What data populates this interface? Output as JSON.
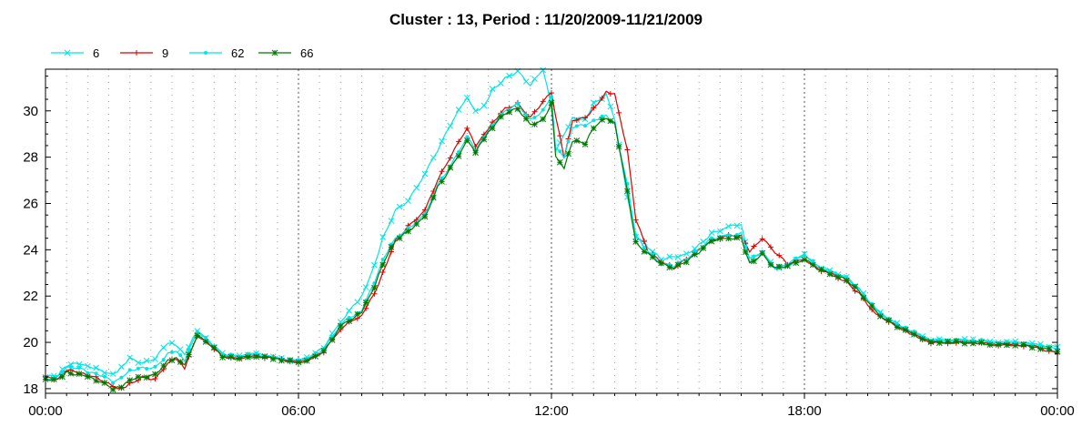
{
  "chart_data": {
    "type": "line",
    "title": "Cluster : 13, Period : 11/20/2009-11/21/2009",
    "xlabel": "",
    "ylabel": "",
    "xlim": [
      0,
      24
    ],
    "ylim": [
      17.8,
      31.8
    ],
    "x_ticks": [
      {
        "value": 0,
        "label": "00:00"
      },
      {
        "value": 6,
        "label": "06:00"
      },
      {
        "value": 12,
        "label": "12:00"
      },
      {
        "value": 18,
        "label": "18:00"
      },
      {
        "value": 24,
        "label": "00:00"
      }
    ],
    "y_ticks": [
      18,
      20,
      22,
      24,
      26,
      28,
      30
    ],
    "grid": "dotted",
    "legend_position": "top-left",
    "series": [
      {
        "name": "6",
        "color": "#00e5e5",
        "marker": "x",
        "points": [
          [
            0,
            18.5
          ],
          [
            0.3,
            18.6
          ],
          [
            0.5,
            19.0
          ],
          [
            0.8,
            19.1
          ],
          [
            1.0,
            19.0
          ],
          [
            1.3,
            18.8
          ],
          [
            1.6,
            18.6
          ],
          [
            1.8,
            18.9
          ],
          [
            2.0,
            19.3
          ],
          [
            2.3,
            19.1
          ],
          [
            2.6,
            19.3
          ],
          [
            2.9,
            20.0
          ],
          [
            3.1,
            19.9
          ],
          [
            3.3,
            19.5
          ],
          [
            3.6,
            20.5
          ],
          [
            3.9,
            20.0
          ],
          [
            4.2,
            19.5
          ],
          [
            4.5,
            19.4
          ],
          [
            5.0,
            19.5
          ],
          [
            5.5,
            19.3
          ],
          [
            6.0,
            19.2
          ],
          [
            6.3,
            19.4
          ],
          [
            6.6,
            19.8
          ],
          [
            7.0,
            20.9
          ],
          [
            7.5,
            22.0
          ],
          [
            7.8,
            23.3
          ],
          [
            8.0,
            24.5
          ],
          [
            8.3,
            25.7
          ],
          [
            8.6,
            26.1
          ],
          [
            9.0,
            27.3
          ],
          [
            9.3,
            28.3
          ],
          [
            9.6,
            29.4
          ],
          [
            10.0,
            30.6
          ],
          [
            10.2,
            30.0
          ],
          [
            10.4,
            30.2
          ],
          [
            10.6,
            30.9
          ],
          [
            10.9,
            31.4
          ],
          [
            11.2,
            31.7
          ],
          [
            11.5,
            31.1
          ],
          [
            11.8,
            31.8
          ],
          [
            12.0,
            30.2
          ],
          [
            12.1,
            28.3
          ],
          [
            12.3,
            29.0
          ],
          [
            12.5,
            29.7
          ],
          [
            12.8,
            29.6
          ],
          [
            13.0,
            30.3
          ],
          [
            13.3,
            30.7
          ],
          [
            13.5,
            29.6
          ],
          [
            13.8,
            26.3
          ],
          [
            14.0,
            24.6
          ],
          [
            14.3,
            24.1
          ],
          [
            14.6,
            23.6
          ],
          [
            14.9,
            23.7
          ],
          [
            15.2,
            23.8
          ],
          [
            15.5,
            24.2
          ],
          [
            15.8,
            24.7
          ],
          [
            16.2,
            25.0
          ],
          [
            16.5,
            25.1
          ],
          [
            16.7,
            23.5
          ],
          [
            17.0,
            23.9
          ],
          [
            17.3,
            23.2
          ],
          [
            17.6,
            23.3
          ],
          [
            18.0,
            23.8
          ],
          [
            18.3,
            23.3
          ],
          [
            18.7,
            23.0
          ],
          [
            19.0,
            22.8
          ],
          [
            19.3,
            22.3
          ],
          [
            19.7,
            21.4
          ],
          [
            20.0,
            21.0
          ],
          [
            20.5,
            20.5
          ],
          [
            21.0,
            20.1
          ],
          [
            21.5,
            20.1
          ],
          [
            22.0,
            20.1
          ],
          [
            22.5,
            20.0
          ],
          [
            23.0,
            20.0
          ],
          [
            23.5,
            19.9
          ],
          [
            24.0,
            19.8
          ]
        ]
      },
      {
        "name": "9",
        "color": "#dd0000",
        "marker": "+",
        "points": [
          [
            0,
            18.5
          ],
          [
            0.3,
            18.4
          ],
          [
            0.5,
            18.8
          ],
          [
            0.8,
            18.7
          ],
          [
            1.0,
            18.6
          ],
          [
            1.3,
            18.4
          ],
          [
            1.6,
            18.1
          ],
          [
            1.8,
            18.0
          ],
          [
            2.0,
            18.2
          ],
          [
            2.3,
            18.5
          ],
          [
            2.6,
            18.4
          ],
          [
            2.9,
            19.1
          ],
          [
            3.1,
            19.3
          ],
          [
            3.3,
            18.9
          ],
          [
            3.6,
            20.3
          ],
          [
            3.9,
            19.9
          ],
          [
            4.2,
            19.4
          ],
          [
            4.5,
            19.3
          ],
          [
            5.0,
            19.4
          ],
          [
            5.5,
            19.3
          ],
          [
            6.0,
            19.1
          ],
          [
            6.3,
            19.3
          ],
          [
            6.6,
            19.6
          ],
          [
            7.0,
            20.6
          ],
          [
            7.5,
            21.2
          ],
          [
            7.8,
            22.1
          ],
          [
            8.0,
            23.0
          ],
          [
            8.3,
            24.4
          ],
          [
            8.6,
            25.0
          ],
          [
            9.0,
            25.7
          ],
          [
            9.3,
            27.0
          ],
          [
            9.6,
            28.0
          ],
          [
            10.0,
            29.3
          ],
          [
            10.2,
            28.5
          ],
          [
            10.4,
            29.0
          ],
          [
            10.6,
            29.5
          ],
          [
            10.9,
            30.1
          ],
          [
            11.2,
            30.3
          ],
          [
            11.5,
            29.7
          ],
          [
            11.8,
            30.4
          ],
          [
            12.0,
            30.8
          ],
          [
            12.1,
            29.8
          ],
          [
            12.3,
            28.0
          ],
          [
            12.5,
            29.6
          ],
          [
            12.8,
            29.7
          ],
          [
            13.0,
            30.1
          ],
          [
            13.3,
            30.8
          ],
          [
            13.5,
            30.7
          ],
          [
            13.8,
            28.3
          ],
          [
            14.0,
            25.3
          ],
          [
            14.3,
            23.9
          ],
          [
            14.6,
            23.5
          ],
          [
            14.9,
            23.2
          ],
          [
            15.2,
            23.6
          ],
          [
            15.5,
            24.0
          ],
          [
            15.8,
            24.4
          ],
          [
            16.2,
            24.6
          ],
          [
            16.5,
            24.6
          ],
          [
            16.7,
            23.9
          ],
          [
            17.0,
            24.5
          ],
          [
            17.3,
            23.9
          ],
          [
            17.6,
            23.4
          ],
          [
            18.0,
            23.6
          ],
          [
            18.3,
            23.2
          ],
          [
            18.7,
            22.9
          ],
          [
            19.0,
            22.6
          ],
          [
            19.3,
            22.1
          ],
          [
            19.7,
            21.2
          ],
          [
            20.0,
            20.9
          ],
          [
            20.5,
            20.4
          ],
          [
            21.0,
            20.0
          ],
          [
            21.5,
            20.0
          ],
          [
            22.0,
            20.0
          ],
          [
            22.5,
            19.9
          ],
          [
            23.0,
            19.9
          ],
          [
            23.5,
            19.8
          ],
          [
            24.0,
            19.5
          ]
        ]
      },
      {
        "name": "62",
        "color": "#00e5e5",
        "marker": "dot",
        "points": [
          [
            0,
            18.4
          ],
          [
            0.3,
            18.5
          ],
          [
            0.5,
            18.9
          ],
          [
            0.8,
            18.9
          ],
          [
            1.0,
            18.7
          ],
          [
            1.3,
            18.6
          ],
          [
            1.6,
            18.3
          ],
          [
            1.8,
            18.5
          ],
          [
            2.0,
            18.8
          ],
          [
            2.3,
            18.9
          ],
          [
            2.6,
            18.9
          ],
          [
            2.9,
            19.5
          ],
          [
            3.1,
            19.6
          ],
          [
            3.3,
            19.2
          ],
          [
            3.6,
            20.5
          ],
          [
            3.9,
            20.0
          ],
          [
            4.2,
            19.5
          ],
          [
            4.5,
            19.4
          ],
          [
            5.0,
            19.5
          ],
          [
            5.5,
            19.3
          ],
          [
            6.0,
            19.2
          ],
          [
            6.3,
            19.4
          ],
          [
            6.6,
            19.7
          ],
          [
            7.0,
            20.8
          ],
          [
            7.5,
            21.4
          ],
          [
            7.8,
            22.6
          ],
          [
            8.0,
            23.6
          ],
          [
            8.3,
            24.5
          ],
          [
            8.6,
            24.9
          ],
          [
            9.0,
            25.5
          ],
          [
            9.3,
            26.8
          ],
          [
            9.6,
            27.6
          ],
          [
            10.0,
            28.9
          ],
          [
            10.2,
            28.3
          ],
          [
            10.4,
            28.9
          ],
          [
            10.6,
            29.4
          ],
          [
            10.9,
            30.0
          ],
          [
            11.2,
            30.3
          ],
          [
            11.5,
            29.6
          ],
          [
            11.8,
            30.0
          ],
          [
            12.0,
            30.6
          ],
          [
            12.1,
            28.4
          ],
          [
            12.3,
            28.0
          ],
          [
            12.5,
            29.3
          ],
          [
            12.8,
            29.4
          ],
          [
            13.0,
            29.6
          ],
          [
            13.3,
            29.8
          ],
          [
            13.5,
            29.4
          ],
          [
            13.8,
            26.8
          ],
          [
            14.0,
            24.6
          ],
          [
            14.3,
            23.9
          ],
          [
            14.6,
            23.4
          ],
          [
            14.9,
            23.3
          ],
          [
            15.2,
            23.6
          ],
          [
            15.5,
            24.0
          ],
          [
            15.8,
            24.5
          ],
          [
            16.2,
            24.6
          ],
          [
            16.5,
            24.7
          ],
          [
            16.7,
            23.6
          ],
          [
            17.0,
            23.9
          ],
          [
            17.3,
            23.2
          ],
          [
            17.6,
            23.4
          ],
          [
            18.0,
            23.8
          ],
          [
            18.3,
            23.3
          ],
          [
            18.7,
            23.0
          ],
          [
            19.0,
            22.8
          ],
          [
            19.3,
            22.3
          ],
          [
            19.7,
            21.4
          ],
          [
            20.0,
            21.0
          ],
          [
            20.5,
            20.5
          ],
          [
            21.0,
            20.1
          ],
          [
            21.5,
            20.1
          ],
          [
            22.0,
            20.1
          ],
          [
            22.5,
            20.0
          ],
          [
            23.0,
            20.0
          ],
          [
            23.5,
            19.9
          ],
          [
            24.0,
            19.7
          ]
        ]
      },
      {
        "name": "66",
        "color": "#007700",
        "marker": "*",
        "points": [
          [
            0,
            18.4
          ],
          [
            0.3,
            18.4
          ],
          [
            0.5,
            18.7
          ],
          [
            0.8,
            18.6
          ],
          [
            1.0,
            18.5
          ],
          [
            1.3,
            18.3
          ],
          [
            1.6,
            18.0
          ],
          [
            1.8,
            18.1
          ],
          [
            2.0,
            18.4
          ],
          [
            2.3,
            18.5
          ],
          [
            2.6,
            18.6
          ],
          [
            2.9,
            19.2
          ],
          [
            3.1,
            19.3
          ],
          [
            3.3,
            19.0
          ],
          [
            3.6,
            20.3
          ],
          [
            3.9,
            19.9
          ],
          [
            4.2,
            19.4
          ],
          [
            4.5,
            19.3
          ],
          [
            5.0,
            19.4
          ],
          [
            5.5,
            19.3
          ],
          [
            6.0,
            19.1
          ],
          [
            6.3,
            19.3
          ],
          [
            6.6,
            19.6
          ],
          [
            7.0,
            20.7
          ],
          [
            7.5,
            21.3
          ],
          [
            7.8,
            22.4
          ],
          [
            8.0,
            23.4
          ],
          [
            8.3,
            24.4
          ],
          [
            8.6,
            24.8
          ],
          [
            9.0,
            25.4
          ],
          [
            9.3,
            26.7
          ],
          [
            9.6,
            27.5
          ],
          [
            10.0,
            28.7
          ],
          [
            10.2,
            28.2
          ],
          [
            10.4,
            28.8
          ],
          [
            10.6,
            29.3
          ],
          [
            10.9,
            29.9
          ],
          [
            11.2,
            30.1
          ],
          [
            11.5,
            29.4
          ],
          [
            11.8,
            29.6
          ],
          [
            12.0,
            30.3
          ],
          [
            12.1,
            28.0
          ],
          [
            12.3,
            27.5
          ],
          [
            12.5,
            28.7
          ],
          [
            12.8,
            28.6
          ],
          [
            13.0,
            29.3
          ],
          [
            13.3,
            29.7
          ],
          [
            13.5,
            29.5
          ],
          [
            13.8,
            26.5
          ],
          [
            14.0,
            24.3
          ],
          [
            14.3,
            23.8
          ],
          [
            14.6,
            23.4
          ],
          [
            14.9,
            23.2
          ],
          [
            15.2,
            23.5
          ],
          [
            15.5,
            23.9
          ],
          [
            15.8,
            24.4
          ],
          [
            16.2,
            24.5
          ],
          [
            16.5,
            24.5
          ],
          [
            16.7,
            23.4
          ],
          [
            17.0,
            23.8
          ],
          [
            17.3,
            23.2
          ],
          [
            17.6,
            23.3
          ],
          [
            18.0,
            23.6
          ],
          [
            18.3,
            23.2
          ],
          [
            18.7,
            22.9
          ],
          [
            19.0,
            22.7
          ],
          [
            19.3,
            22.2
          ],
          [
            19.7,
            21.3
          ],
          [
            20.0,
            20.9
          ],
          [
            20.5,
            20.4
          ],
          [
            21.0,
            20.0
          ],
          [
            21.5,
            20.0
          ],
          [
            22.0,
            20.0
          ],
          [
            22.5,
            19.9
          ],
          [
            23.0,
            19.9
          ],
          [
            23.5,
            19.8
          ],
          [
            24.0,
            19.6
          ]
        ]
      }
    ]
  }
}
